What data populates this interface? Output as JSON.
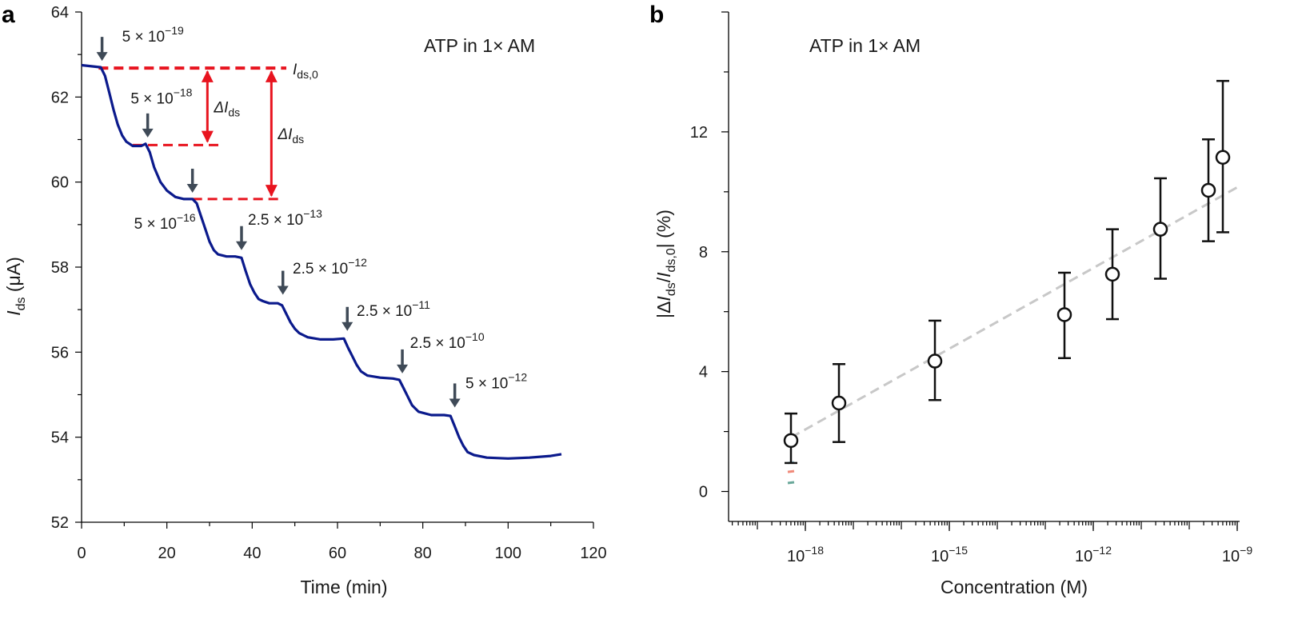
{
  "chart_data": [
    {
      "panel": "a",
      "type": "line",
      "title": "ATP in 1× AM",
      "xlabel": "Time (min)",
      "ylabel_main": "I",
      "ylabel_sub": "ds",
      "ylabel_unit": " (μA)",
      "xlim": [
        0,
        120
      ],
      "ylim": [
        52,
        64
      ],
      "xticks": [
        "0",
        "20",
        "40",
        "60",
        "80",
        "100",
        "120"
      ],
      "yticks": [
        "52",
        "54",
        "56",
        "58",
        "60",
        "62",
        "64"
      ],
      "series": [
        {
          "name": "Ids",
          "color": "#0b1a8c",
          "x": [
            0,
            4.5,
            5.5,
            6.5,
            7.5,
            8.5,
            9.5,
            10.5,
            12,
            14,
            15,
            16,
            17,
            18.5,
            20,
            22,
            24,
            26,
            27,
            28,
            29,
            30,
            31,
            32,
            34,
            36,
            37.5,
            38.5,
            39.5,
            40.5,
            41.5,
            42.5,
            44,
            46,
            47,
            48,
            49,
            50,
            51,
            53,
            56,
            59,
            61.5,
            62.5,
            63.5,
            64.5,
            65.5,
            67,
            70,
            73,
            74.5,
            75.5,
            76.5,
            77.5,
            79,
            82,
            85,
            86.5,
            87.5,
            88.5,
            89.5,
            90.5,
            92,
            95,
            100,
            105,
            110,
            112.5
          ],
          "y": [
            62.75,
            62.7,
            62.5,
            62.1,
            61.7,
            61.35,
            61.1,
            60.95,
            60.85,
            60.85,
            60.9,
            60.7,
            60.35,
            60.0,
            59.8,
            59.65,
            59.6,
            59.6,
            59.5,
            59.2,
            58.9,
            58.6,
            58.4,
            58.3,
            58.25,
            58.25,
            58.22,
            57.9,
            57.6,
            57.4,
            57.25,
            57.2,
            57.15,
            57.15,
            57.1,
            56.9,
            56.7,
            56.55,
            56.45,
            56.35,
            56.3,
            56.3,
            56.32,
            56.1,
            55.9,
            55.7,
            55.55,
            55.45,
            55.4,
            55.38,
            55.35,
            55.15,
            54.95,
            54.75,
            54.6,
            54.52,
            54.52,
            54.5,
            54.25,
            54.0,
            53.8,
            53.65,
            53.58,
            53.52,
            53.5,
            53.52,
            53.56,
            53.6
          ]
        }
      ],
      "reference_lines": [
        {
          "label_main": "I",
          "label_sub": "ds,0",
          "y": 62.68,
          "x_start": 4,
          "x_end": 48,
          "color": "#e8141f"
        },
        {
          "y": 60.87,
          "x_start": 12,
          "x_end": 32.5,
          "color": "#e8141f"
        },
        {
          "y": 59.6,
          "x_start": 26,
          "x_end": 47,
          "color": "#e8141f"
        }
      ],
      "delta_arrows": [
        {
          "label_main": "ΔI",
          "label_sub": "ds",
          "x": 29.5,
          "y_from": 62.6,
          "y_to": 60.95,
          "color": "#e8141f"
        },
        {
          "label_main": "ΔI",
          "label_sub": "ds",
          "x": 44.5,
          "y_from": 62.6,
          "y_to": 59.68,
          "color": "#e8141f"
        }
      ],
      "injections": [
        {
          "x": 4.8,
          "y_tip": 62.85,
          "label": "5 × 10",
          "exp": "−19",
          "lx": 9.5,
          "ly": 63.3
        },
        {
          "x": 15.5,
          "y_tip": 61.05,
          "label": "5 × 10",
          "exp": "−18",
          "lx": 11.5,
          "ly": 61.85
        },
        {
          "x": 26,
          "y_tip": 59.75,
          "label": "5 × 10",
          "exp": "−16",
          "lx": 12.3,
          "ly": 58.9
        },
        {
          "x": 37.5,
          "y_tip": 58.4,
          "label": "2.5 × 10",
          "exp": "−13",
          "lx": 39,
          "ly": 59.0
        },
        {
          "x": 47.2,
          "y_tip": 57.35,
          "label": "2.5 × 10",
          "exp": "−12",
          "lx": 49.5,
          "ly": 57.85
        },
        {
          "x": 62.3,
          "y_tip": 56.5,
          "label": "2.5 × 10",
          "exp": "−11",
          "lx": 64.5,
          "ly": 56.85
        },
        {
          "x": 75.2,
          "y_tip": 55.5,
          "label": "2.5 × 10",
          "exp": "−10",
          "lx": 77,
          "ly": 56.1
        },
        {
          "x": 87.5,
          "y_tip": 54.7,
          "label": "5 × 10",
          "exp": "−12",
          "lx": 90,
          "ly": 55.15
        }
      ],
      "arrow_color": "#3f4a57"
    },
    {
      "panel": "b",
      "type": "scatter",
      "title": "ATP in 1× AM",
      "xlabel": "Concentration (M)",
      "ylabel_parts": [
        "|Δ",
        "I",
        "ds",
        "/",
        "I",
        "ds,0",
        "| (%)"
      ],
      "xscale": "log",
      "xlim_log10": [
        -19.6,
        -8.95
      ],
      "ylim": [
        -1,
        16
      ],
      "xticks": [
        {
          "base": "10",
          "exp": "−18",
          "log10": -18
        },
        {
          "base": "10",
          "exp": "−15",
          "log10": -15
        },
        {
          "base": "10",
          "exp": "−12",
          "log10": -12
        },
        {
          "base": "10",
          "exp": "−9",
          "log10": -9
        }
      ],
      "yticks": [
        "0",
        "4",
        "8",
        "12"
      ],
      "points": [
        {
          "log10x": -18.3,
          "y": 1.7,
          "err_low": 0.95,
          "err_high": 2.6
        },
        {
          "log10x": -17.3,
          "y": 2.95,
          "err_low": 1.65,
          "err_high": 4.25
        },
        {
          "log10x": -15.3,
          "y": 4.35,
          "err_low": 3.05,
          "err_high": 5.7
        },
        {
          "log10x": -12.6,
          "y": 5.9,
          "err_low": 4.45,
          "err_high": 7.3
        },
        {
          "log10x": -11.6,
          "y": 7.25,
          "err_low": 5.75,
          "err_high": 8.75
        },
        {
          "log10x": -10.6,
          "y": 8.75,
          "err_low": 7.1,
          "err_high": 10.45
        },
        {
          "log10x": -9.6,
          "y": 10.05,
          "err_low": 8.35,
          "err_high": 11.75
        },
        {
          "log10x": -9.3,
          "y": 11.15,
          "err_low": 8.65,
          "err_high": 13.7
        }
      ],
      "fit_line": {
        "log10x": [
          -18.3,
          -9.0
        ],
        "y": [
          1.8,
          10.15
        ],
        "color": "#c8c8c8"
      },
      "residual_marks": [
        {
          "log10x": -18.3,
          "y": 0.95,
          "color": "#9ec9d6"
        },
        {
          "log10x": -18.3,
          "y": 0.65,
          "color": "#f08a7a"
        },
        {
          "log10x": -18.3,
          "y": 0.28,
          "color": "#6aa89a"
        }
      ]
    }
  ]
}
